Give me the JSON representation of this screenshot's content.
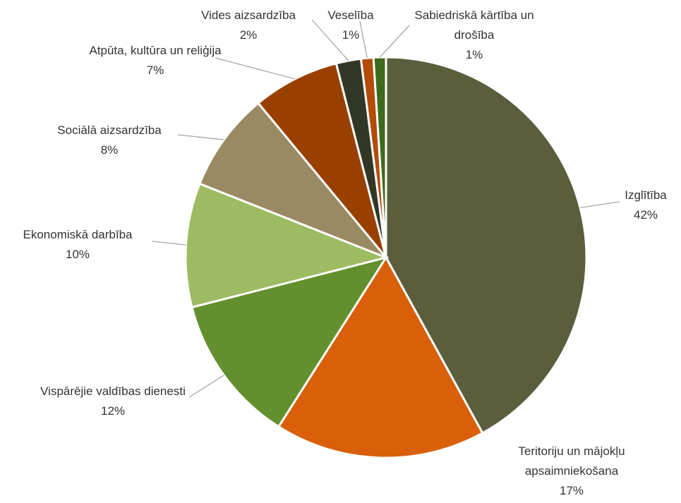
{
  "chart_data": {
    "type": "pie",
    "categories": [
      "Izglītība",
      "Teritoriju un mājokļu apsaimniekošana",
      "Vispārējie valdības dienesti",
      "Ekonomiskā darbība",
      "Sociālā aizsardzība",
      "Atpūta, kultūra un reliģija",
      "Vides aizsardzība",
      "Veselība",
      "Sabiedriskā kārtība un drošība"
    ],
    "values": [
      42,
      17,
      12,
      10,
      8,
      7,
      2,
      1,
      1
    ],
    "value_labels": [
      "42%",
      "17%",
      "12%",
      "10%",
      "8%",
      "7%",
      "2%",
      "1%",
      "1%"
    ],
    "colors": [
      "#5a5e3c",
      "#d95f0a",
      "#63902e",
      "#9dbb61",
      "#998a64",
      "#994001",
      "#333726",
      "#b34c09",
      "#3e6a1d"
    ]
  }
}
